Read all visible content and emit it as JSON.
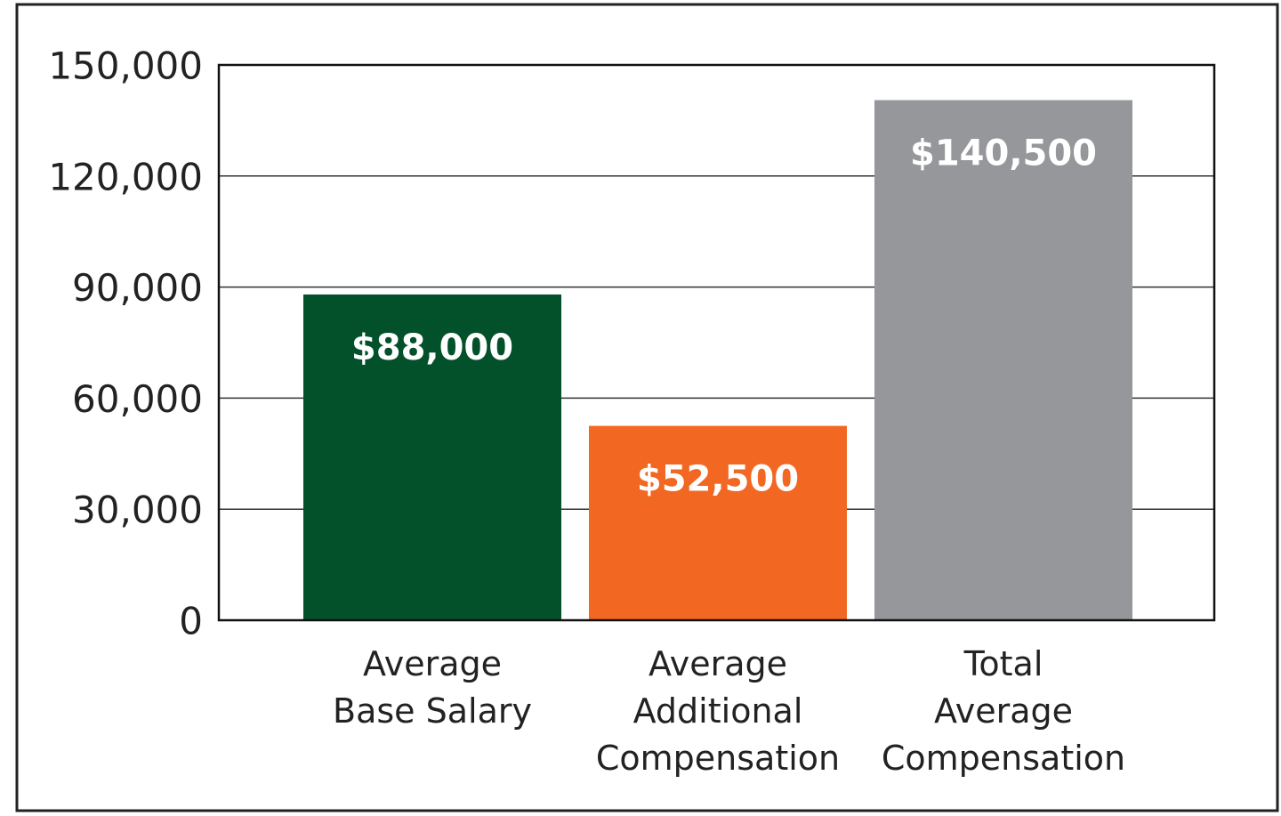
{
  "chart_data": {
    "type": "bar",
    "categories": [
      "Average\nBase Salary",
      "Average\nAdditional\nCompensation",
      "Total\nAverage\nCompensation"
    ],
    "values": [
      88000,
      52500,
      140500
    ],
    "value_labels": [
      "$88,000",
      "$52,500",
      "$140,500"
    ],
    "colors": [
      "#02512b",
      "#f26722",
      "#96979a"
    ],
    "ylim": [
      0,
      150000
    ],
    "yticks": [
      0,
      {
        "value": 30000,
        "label": "30,000"
      },
      {
        "value": 60000,
        "label": "60,000"
      },
      {
        "value": 90000,
        "label": "90,000"
      },
      {
        "value": 120000,
        "label": "120,000"
      },
      {
        "value": 150000,
        "label": "150,000"
      }
    ],
    "grid": true
  }
}
